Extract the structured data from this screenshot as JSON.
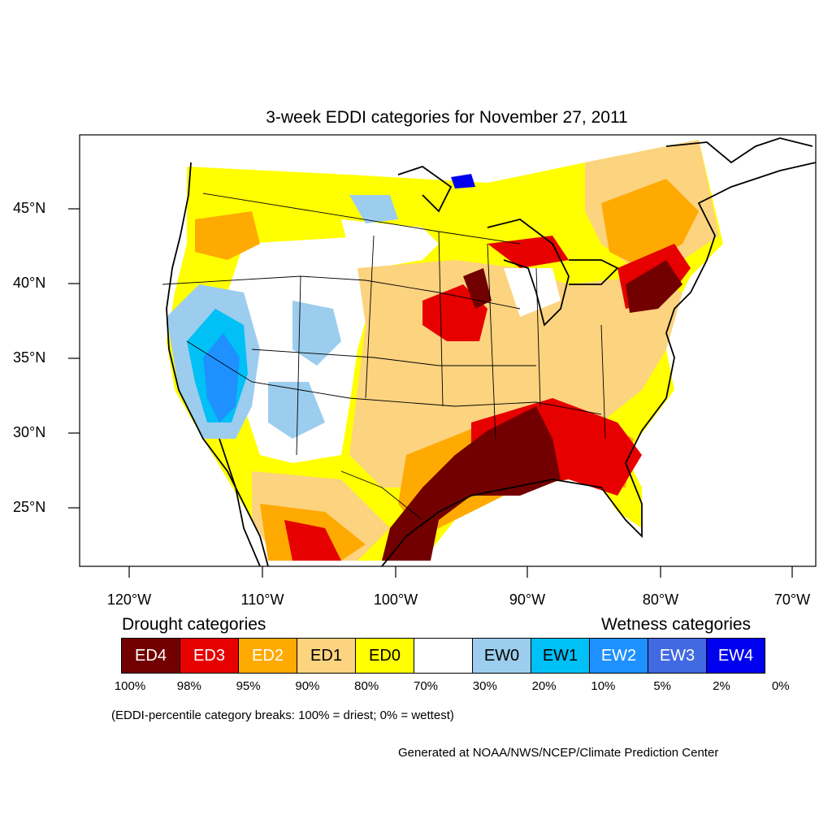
{
  "title": "3-week EDDI categories for November 27, 2011",
  "lat_labels": [
    "45°N",
    "40°N",
    "35°N",
    "30°N",
    "25°N"
  ],
  "lon_labels": [
    "120°W",
    "110°W",
    "100°W",
    "90°W",
    "80°W",
    "70°W"
  ],
  "drought_heading": "Drought categories",
  "wetness_heading": "Wetness categories",
  "legend": [
    {
      "label": "ED4",
      "color": "#730000",
      "text_color": "#ffffff"
    },
    {
      "label": "ED3",
      "color": "#e60000",
      "text_color": "#ffffff"
    },
    {
      "label": "ED2",
      "color": "#ffaa00",
      "text_color": "#ffffff"
    },
    {
      "label": "ED1",
      "color": "#fcd37f",
      "text_color": "#000000"
    },
    {
      "label": "ED0",
      "color": "#ffff00",
      "text_color": "#000000"
    },
    {
      "label": "",
      "color": "#ffffff",
      "text_color": "#000000"
    },
    {
      "label": "EW0",
      "color": "#9ccdee",
      "text_color": "#000000"
    },
    {
      "label": "EW1",
      "color": "#00c0f5",
      "text_color": "#000000"
    },
    {
      "label": "EW2",
      "color": "#1e90ff",
      "text_color": "#ffffff"
    },
    {
      "label": "EW3",
      "color": "#4169e1",
      "text_color": "#ffffff"
    },
    {
      "label": "EW4",
      "color": "#0000f0",
      "text_color": "#ffffff"
    }
  ],
  "breaks": [
    "100%",
    "98%",
    "95%",
    "90%",
    "80%",
    "70%",
    "30%",
    "20%",
    "10%",
    "5%",
    "2%",
    "0%"
  ],
  "note": "(EDDI-percentile category breaks: 100% = driest; 0% = wettest)",
  "credit": "Generated at NOAA/NWS/NCEP/Climate Prediction Center"
}
